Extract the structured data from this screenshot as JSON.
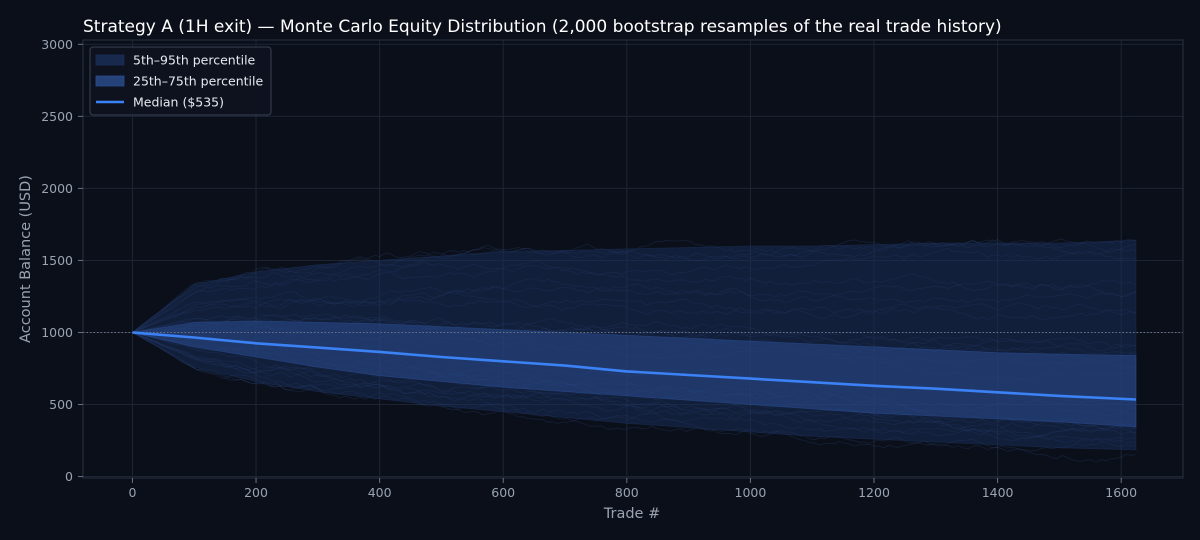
{
  "chart_data": {
    "type": "area",
    "title": "Strategy A (1H exit) — Monte Carlo Equity Distribution (2,000 bootstrap resamples of the real trade history)",
    "xlabel": "Trade #",
    "ylabel": "Account Balance (USD)",
    "xlim": [
      -80,
      1700
    ],
    "ylim": [
      -10,
      3030
    ],
    "xticks": [
      0,
      200,
      400,
      600,
      800,
      1000,
      1200,
      1400,
      1600
    ],
    "yticks": [
      0,
      500,
      1000,
      1500,
      2000,
      2500,
      3000
    ],
    "grid": true,
    "legend_position": "top-left",
    "reference_line": {
      "y": 1000,
      "style": "dotted"
    },
    "x": [
      0,
      100,
      200,
      300,
      400,
      500,
      600,
      700,
      800,
      900,
      1000,
      1100,
      1200,
      1300,
      1400,
      1500,
      1624
    ],
    "series": [
      {
        "name": "5th–95th percentile",
        "kind": "band",
        "lower": [
          1000,
          760,
          660,
          590,
          540,
          490,
          450,
          410,
          370,
          340,
          310,
          280,
          260,
          240,
          220,
          200,
          185
        ],
        "upper": [
          1000,
          1330,
          1420,
          1470,
          1500,
          1530,
          1560,
          1570,
          1580,
          1590,
          1600,
          1600,
          1610,
          1620,
          1620,
          1620,
          1640
        ]
      },
      {
        "name": "25th–75th percentile",
        "kind": "band",
        "lower": [
          1000,
          900,
          830,
          760,
          700,
          660,
          620,
          590,
          560,
          530,
          500,
          470,
          440,
          420,
          400,
          380,
          345
        ],
        "upper": [
          1000,
          1070,
          1080,
          1070,
          1060,
          1040,
          1020,
          1000,
          980,
          960,
          940,
          920,
          900,
          880,
          860,
          850,
          840
        ]
      },
      {
        "name": "Median ($535)",
        "kind": "line",
        "values": [
          1000,
          965,
          925,
          895,
          865,
          830,
          800,
          770,
          730,
          705,
          680,
          655,
          630,
          610,
          585,
          560,
          535
        ]
      }
    ],
    "colors": {
      "background": "#0b0f19",
      "band_outer": "#1a2e57",
      "band_inner": "#2a4d8f",
      "median": "#3b82f6",
      "paths": "#3a5fa8",
      "grid": "#1d2535",
      "text": "#9aa3b2",
      "title": "#ffffff"
    }
  }
}
